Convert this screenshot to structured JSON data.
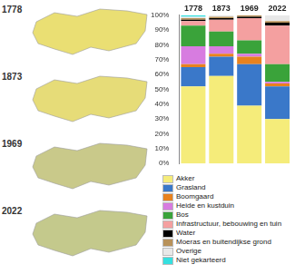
{
  "maps": {
    "labels": [
      "1778",
      "1873",
      "1969",
      "2022"
    ]
  },
  "chart_data": {
    "type": "bar",
    "stacked": true,
    "grid": false,
    "legend": "bottom",
    "categories": [
      "1778",
      "1873",
      "1969",
      "2022"
    ],
    "ylim": [
      0,
      100
    ],
    "yticks": [
      {
        "value": 0,
        "label": "0%"
      },
      {
        "value": 10,
        "label": "10%"
      },
      {
        "value": 20,
        "label": "20%"
      },
      {
        "value": 30,
        "label": "30%"
      },
      {
        "value": 40,
        "label": "40%"
      },
      {
        "value": 50,
        "label": "50%"
      },
      {
        "value": 60,
        "label": "60%"
      },
      {
        "value": 70,
        "label": "70%"
      },
      {
        "value": 80,
        "label": "80%"
      },
      {
        "value": 90,
        "label": "90%"
      },
      {
        "value": 100,
        "label": "100%"
      }
    ],
    "series": [
      {
        "name": "Akker",
        "color": "#f5ec7a",
        "values": [
          52,
          59,
          39,
          30
        ]
      },
      {
        "name": "Grasland",
        "color": "#3a78c9",
        "values": [
          13,
          13,
          28,
          22
        ]
      },
      {
        "name": "Boomgaard",
        "color": "#e8821e",
        "values": [
          2,
          2,
          5,
          2
        ]
      },
      {
        "name": "Heide en kustduin",
        "color": "#d77ce0",
        "values": [
          12,
          5,
          2,
          1
        ]
      },
      {
        "name": "Bos",
        "color": "#3aa33a",
        "values": [
          14,
          10,
          9,
          12
        ]
      },
      {
        "name": "Infrastructuur, bebouwing en tuin",
        "color": "#f4a0a0",
        "values": [
          3,
          8,
          15,
          26
        ]
      },
      {
        "name": "Water",
        "color": "#000000",
        "values": [
          1,
          1,
          1,
          2
        ]
      },
      {
        "name": "Moeras en buitendijkse grond",
        "color": "#b8925a",
        "values": [
          1,
          1,
          1,
          1
        ]
      },
      {
        "name": "Overige",
        "color": "#e8e8e8",
        "values": [
          1,
          1,
          0,
          4
        ]
      },
      {
        "name": "Niet gekarteerd",
        "color": "#35e0e0",
        "values": [
          1,
          0,
          0,
          0
        ]
      }
    ]
  }
}
